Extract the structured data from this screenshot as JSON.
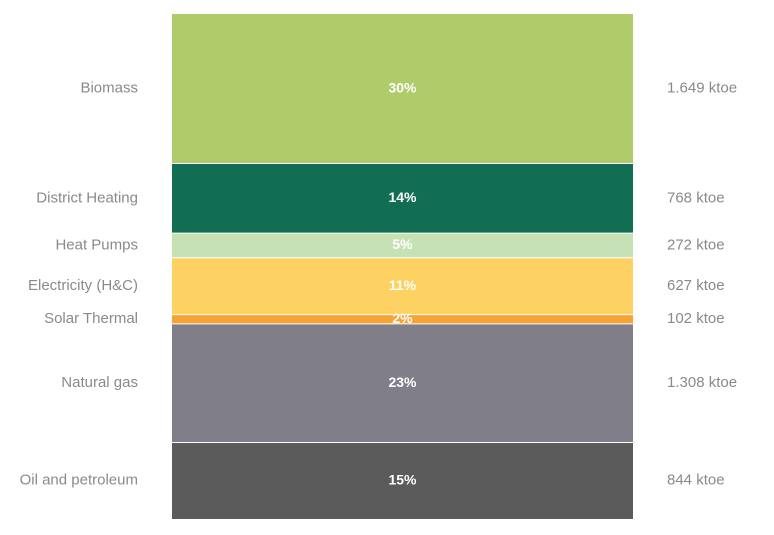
{
  "chart_data": {
    "type": "bar",
    "orientation": "stacked-100",
    "title": "",
    "xlabel": "",
    "ylabel": "",
    "categories": [
      "Biomass",
      "District Heating",
      "Heat Pumps",
      "Electricity (H&C)",
      "Solar Thermal",
      "Natural gas",
      "Oil and petroleum"
    ],
    "percent_labels": [
      "30%",
      "14%",
      "5%",
      "11%",
      "2%",
      "23%",
      "15%"
    ],
    "percent_values": [
      30,
      14,
      5,
      11,
      2,
      23,
      15
    ],
    "value_labels": [
      "1.649 ktoe",
      "768 ktoe",
      "272 ktoe",
      "627 ktoe",
      "102 ktoe",
      "1.308 ktoe",
      "844 ktoe"
    ],
    "values_ktoe": [
      1649,
      768,
      272,
      627,
      102,
      1308,
      844
    ],
    "unit": "ktoe",
    "colors": [
      "#afcb6a",
      "#126e52",
      "#c6e2b5",
      "#fed163",
      "#f7a336",
      "#807e89",
      "#5b5b5b"
    ],
    "grid": false,
    "legend": "none"
  }
}
